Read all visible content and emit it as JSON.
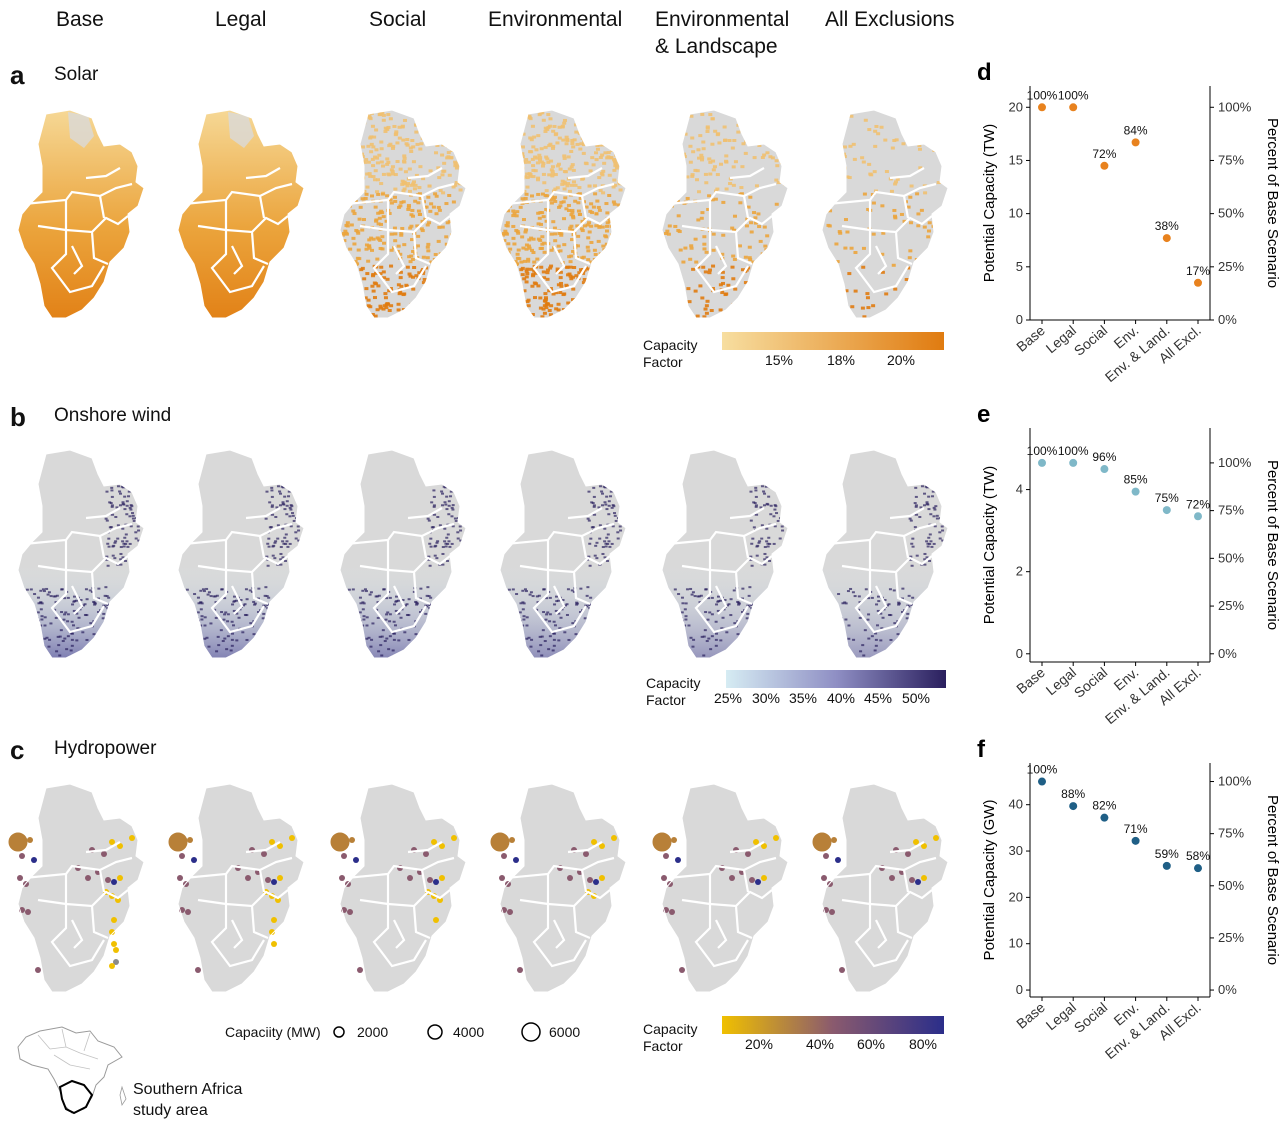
{
  "columns": [
    "Base",
    "Legal",
    "Social",
    "Environmental",
    "Environmental\n& Landscape",
    "All Exclusions"
  ],
  "panels": {
    "a": {
      "letter": "a",
      "title": "Solar"
    },
    "b": {
      "letter": "b",
      "title": "Onshore wind"
    },
    "c": {
      "letter": "c",
      "title": "Hydropower"
    }
  },
  "colors": {
    "map_gray": "#d9d9d9",
    "solar_low": "#f7deA0",
    "solar_high": "#e07b10",
    "wind_low": "#d6ecf3",
    "wind_high": "#2a1f5e",
    "hydro_low": "#f0c000",
    "hydro_mid": "#8a5a6e",
    "hydro_high": "#2b2e8a",
    "chart_d": "#e8821e",
    "chart_e": "#7fb8c8",
    "chart_f": "#1f5f86"
  },
  "legends": {
    "solar": {
      "title": "Capacity\nFactor",
      "ticks": [
        "15%",
        "18%",
        "20%"
      ]
    },
    "wind": {
      "title": "Capacity\nFactor",
      "ticks": [
        "25%",
        "30%",
        "35%",
        "40%",
        "45%",
        "50%"
      ]
    },
    "hydro": {
      "title": "Capacity\nFactor",
      "ticks": [
        "20%",
        "40%",
        "60%",
        "80%"
      ]
    },
    "hydro_size": {
      "title": "Capaciity (MW)",
      "labels": [
        "2000",
        "4000",
        "6000"
      ]
    }
  },
  "inset": {
    "label": "Southern Africa\nstudy area"
  },
  "chart_data": [
    {
      "letter": "d",
      "type": "scatter",
      "categories": [
        "Base",
        "Legal",
        "Social",
        "Env.",
        "Env. & Land.",
        "All Excl."
      ],
      "values": [
        20,
        20,
        14.5,
        16.7,
        7.7,
        3.5
      ],
      "labels": [
        "100%",
        "100%",
        "72%",
        "84%",
        "38%",
        "17%"
      ],
      "ylabel": "Potential Capacity (TW)",
      "y2label": "Percent of Base Scenario",
      "ylim": [
        0,
        22
      ],
      "yticks": [
        0,
        5,
        10,
        15,
        20
      ],
      "y2ticks": [
        "0%",
        "25%",
        "50%",
        "75%",
        "100%"
      ],
      "y2values": [
        0,
        25,
        50,
        75,
        100
      ],
      "base": 20
    },
    {
      "letter": "e",
      "type": "scatter",
      "categories": [
        "Base",
        "Legal",
        "Social",
        "Env.",
        "Env. & Land.",
        "All Excl."
      ],
      "values": [
        4.65,
        4.65,
        4.5,
        3.95,
        3.5,
        3.35
      ],
      "labels": [
        "100%",
        "100%",
        "96%",
        "85%",
        "75%",
        "72%"
      ],
      "ylabel": "Potential Capacity (TW)",
      "y2label": "Percent of Base Scenario",
      "ylim": [
        -0.2,
        5.5
      ],
      "yticks": [
        0,
        2,
        4
      ],
      "y2ticks": [
        "0%",
        "25%",
        "50%",
        "75%",
        "100%"
      ],
      "y2values": [
        0,
        25,
        50,
        75,
        100
      ],
      "base": 4.65
    },
    {
      "letter": "f",
      "type": "scatter",
      "categories": [
        "Base",
        "Legal",
        "Social",
        "Env.",
        "Env. & Land.",
        "All Excl."
      ],
      "values": [
        45,
        39.7,
        37.2,
        32.2,
        26.8,
        26.3
      ],
      "labels": [
        "100%",
        "88%",
        "82%",
        "71%",
        "59%",
        "58%"
      ],
      "ylabel": "Potential Capacity (GW)",
      "y2label": "Percent of Base Scenario",
      "ylim": [
        -1.5,
        49
      ],
      "yticks": [
        0,
        10,
        20,
        30,
        40
      ],
      "y2ticks": [
        "0%",
        "25%",
        "50%",
        "75%",
        "100%"
      ],
      "y2values": [
        0,
        25,
        50,
        75,
        100
      ],
      "base": 45
    }
  ]
}
